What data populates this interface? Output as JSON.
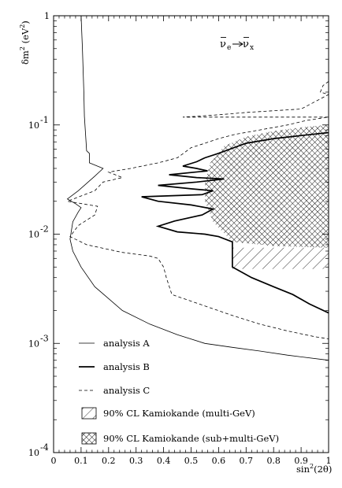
{
  "chart_data": {
    "type": "line",
    "annotation": {
      "nu_main": "ν",
      "sub_left": "e",
      "sub_right": "x"
    },
    "xlabel": {
      "main": "sin",
      "sup": "2",
      "tail": "(2θ)"
    },
    "ylabel": {
      "main": "δm",
      "sup": "2",
      "tail": " (eV",
      "tail_sup": "2",
      "close": ")"
    },
    "xlim": [
      0,
      1
    ],
    "ylim": [
      0.0001,
      1
    ],
    "yscale": "log",
    "x_ticks": [
      {
        "v": 0,
        "label": "0"
      },
      {
        "v": 0.1,
        "label": "0.1"
      },
      {
        "v": 0.2,
        "label": "0.2"
      },
      {
        "v": 0.3,
        "label": "0.3"
      },
      {
        "v": 0.4,
        "label": "0.4"
      },
      {
        "v": 0.5,
        "label": "0.5"
      },
      {
        "v": 0.6,
        "label": "0.6"
      },
      {
        "v": 0.7,
        "label": "0.7"
      },
      {
        "v": 0.8,
        "label": "0.8"
      },
      {
        "v": 0.9,
        "label": "0.9"
      },
      {
        "v": 1,
        "label": "1"
      }
    ],
    "y_ticks": [
      {
        "v": 1,
        "base": "1",
        "exp": ""
      },
      {
        "v": 0.1,
        "base": "10",
        "exp": "-1"
      },
      {
        "v": 0.01,
        "base": "10",
        "exp": "-2"
      },
      {
        "v": 0.001,
        "base": "10",
        "exp": "-3"
      },
      {
        "v": 0.0001,
        "base": "10",
        "exp": "-4"
      }
    ],
    "series": [
      {
        "name": "analysis A",
        "style": "thin",
        "points": [
          [
            0.1,
            1
          ],
          [
            0.105,
            0.5
          ],
          [
            0.11,
            0.2
          ],
          [
            0.112,
            0.12
          ],
          [
            0.118,
            0.07
          ],
          [
            0.12,
            0.058
          ],
          [
            0.13,
            0.055
          ],
          [
            0.13,
            0.045
          ],
          [
            0.18,
            0.04
          ],
          [
            0.15,
            0.034
          ],
          [
            0.09,
            0.025
          ],
          [
            0.05,
            0.021
          ],
          [
            0.08,
            0.019
          ],
          [
            0.1,
            0.0175
          ],
          [
            0.09,
            0.016
          ],
          [
            0.07,
            0.013
          ],
          [
            0.06,
            0.009
          ],
          [
            0.07,
            0.007
          ],
          [
            0.1,
            0.005
          ],
          [
            0.15,
            0.0033
          ],
          [
            0.25,
            0.002
          ],
          [
            0.35,
            0.0015
          ],
          [
            0.45,
            0.0012
          ],
          [
            0.55,
            0.001
          ],
          [
            0.65,
            0.00092
          ],
          [
            0.75,
            0.00085
          ],
          [
            0.85,
            0.00078
          ],
          [
            1.0,
            0.0007
          ]
        ]
      },
      {
        "name": "analysis B",
        "style": "thick",
        "points": [
          [
            1.0,
            0.085
          ],
          [
            0.9,
            0.08
          ],
          [
            0.8,
            0.075
          ],
          [
            0.7,
            0.068
          ],
          [
            0.6,
            0.055
          ],
          [
            0.55,
            0.05
          ],
          [
            0.52,
            0.046
          ],
          [
            0.47,
            0.042
          ],
          [
            0.52,
            0.04
          ],
          [
            0.56,
            0.038
          ],
          [
            0.42,
            0.035
          ],
          [
            0.52,
            0.033
          ],
          [
            0.62,
            0.032
          ],
          [
            0.52,
            0.03
          ],
          [
            0.38,
            0.028
          ],
          [
            0.5,
            0.026
          ],
          [
            0.58,
            0.025
          ],
          [
            0.54,
            0.023
          ],
          [
            0.32,
            0.022
          ],
          [
            0.38,
            0.02
          ],
          [
            0.5,
            0.0185
          ],
          [
            0.58,
            0.017
          ],
          [
            0.54,
            0.015
          ],
          [
            0.44,
            0.0132
          ],
          [
            0.38,
            0.0118
          ],
          [
            0.45,
            0.0105
          ],
          [
            0.55,
            0.01
          ],
          [
            0.6,
            0.0095
          ],
          [
            0.65,
            0.0085
          ],
          [
            0.65,
            0.005
          ],
          [
            0.72,
            0.004
          ],
          [
            0.8,
            0.0033
          ],
          [
            0.87,
            0.0028
          ],
          [
            0.93,
            0.0023
          ],
          [
            1.0,
            0.0019
          ]
        ]
      },
      {
        "name": "analysis C",
        "style": "dashed",
        "points": [
          [
            1.0,
            0.25
          ],
          [
            0.98,
            0.23
          ],
          [
            0.97,
            0.2
          ],
          [
            1.0,
            0.19
          ],
          [
            0.9,
            0.14
          ],
          [
            0.8,
            0.135
          ],
          [
            0.7,
            0.13
          ],
          [
            0.62,
            0.125
          ],
          [
            0.52,
            0.12
          ],
          [
            0.47,
            0.118
          ],
          [
            1.0,
            0.118
          ],
          [
            0.92,
            0.11
          ],
          [
            0.85,
            0.1
          ],
          [
            0.75,
            0.09
          ],
          [
            0.66,
            0.082
          ],
          [
            0.6,
            0.075
          ],
          [
            0.55,
            0.068
          ],
          [
            0.5,
            0.062
          ],
          [
            0.45,
            0.05
          ],
          [
            0.38,
            0.045
          ],
          [
            0.28,
            0.04
          ],
          [
            0.2,
            0.037
          ],
          [
            0.25,
            0.033
          ],
          [
            0.18,
            0.03
          ],
          [
            0.15,
            0.025
          ],
          [
            0.05,
            0.02
          ],
          [
            0.16,
            0.018
          ],
          [
            0.15,
            0.015
          ],
          [
            0.09,
            0.012
          ],
          [
            0.06,
            0.0095
          ],
          [
            0.12,
            0.008
          ],
          [
            0.25,
            0.0068
          ],
          [
            0.35,
            0.0063
          ],
          [
            0.38,
            0.006
          ],
          [
            0.4,
            0.005
          ],
          [
            0.41,
            0.004
          ],
          [
            0.43,
            0.0028
          ],
          [
            0.55,
            0.0022
          ],
          [
            0.65,
            0.0018
          ],
          [
            0.75,
            0.0015
          ],
          [
            0.85,
            0.0013
          ],
          [
            0.95,
            0.00115
          ],
          [
            1.0,
            0.0011
          ]
        ]
      }
    ],
    "regions": [
      {
        "name": "90% CL Kamiokande (multi-GeV)",
        "fill": "single-hatch",
        "points": [
          [
            0.65,
            0.0075
          ],
          [
            1.0,
            0.0075
          ],
          [
            1.0,
            0.0048
          ],
          [
            0.65,
            0.0048
          ]
        ]
      },
      {
        "name": "90% CL Kamiokande (sub+multi-GeV)",
        "fill": "cross-hatch",
        "points": [
          [
            1.0,
            0.1
          ],
          [
            0.9,
            0.095
          ],
          [
            0.8,
            0.088
          ],
          [
            0.7,
            0.078
          ],
          [
            0.62,
            0.064
          ],
          [
            0.57,
            0.045
          ],
          [
            0.55,
            0.03
          ],
          [
            0.55,
            0.02
          ],
          [
            0.58,
            0.013
          ],
          [
            0.65,
            0.0085
          ],
          [
            0.8,
            0.0078
          ],
          [
            1.0,
            0.0075
          ]
        ]
      }
    ],
    "legend": {
      "placement": "bottom-left",
      "entries": [
        {
          "label": "analysis A",
          "symbol": "thin"
        },
        {
          "label": "analysis B",
          "symbol": "thick"
        },
        {
          "label": "analysis C",
          "symbol": "dashed"
        },
        {
          "label": "90% CL Kamiokande (multi-GeV)",
          "symbol": "single-hatch"
        },
        {
          "label": "90% CL Kamiokande (sub+multi-GeV)",
          "symbol": "cross-hatch"
        }
      ]
    }
  }
}
